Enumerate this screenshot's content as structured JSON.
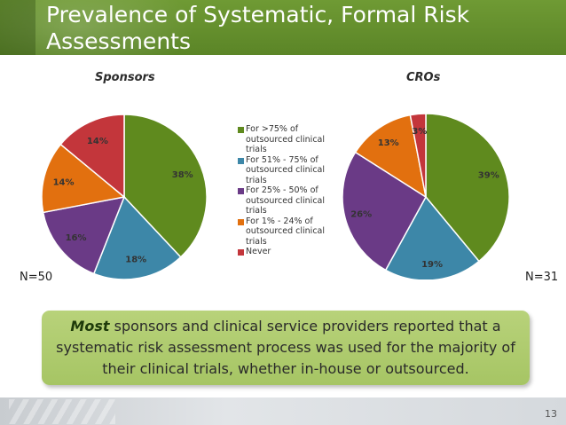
{
  "slide": {
    "title": "Prevalence of Systematic, Formal Risk Assessments",
    "page_number": "13"
  },
  "callout": {
    "emphasis": "Most",
    "text": " sponsors and clinical service providers reported that a systematic risk assessment process was used for the majority of their clinical trials, whether in-house or outsourced."
  },
  "colors": {
    "header_green": "#5b8527",
    "slice_1": "#5f8a1e",
    "slice_2": "#3d87a8",
    "slice_3": "#6a3a86",
    "slice_4": "#e2700f",
    "slice_5": "#c3363b"
  },
  "chart_data": [
    {
      "type": "pie",
      "title": "Sponsors",
      "note": "N=50",
      "categories": [
        "For >75% of outsourced clinical trials",
        "For 51% - 75% of outsourced clinical trials",
        "For 25% - 50% of outsourced clinical trials",
        "For 1% - 24% of outsourced clinical trials",
        "Never"
      ],
      "values": [
        38,
        18,
        16,
        14,
        14
      ],
      "labels": [
        "38%",
        "18%",
        "16%",
        "14%",
        "14%"
      ],
      "legend": "right"
    },
    {
      "type": "pie",
      "title": "CROs",
      "note": "N=31",
      "categories": [
        "For >75% of outsourced clinical trials",
        "For 51% - 75% of outsourced clinical trials",
        "For 25% - 50% of outsourced clinical trials",
        "For 1% - 24% of outsourced clinical trials",
        "Never"
      ],
      "values": [
        39,
        19,
        26,
        13,
        3
      ],
      "labels": [
        "39%",
        "19%",
        "26%",
        "13%",
        "3%"
      ],
      "legend": "left"
    }
  ],
  "legend": [
    "For >75% of outsourced clinical trials",
    "For 51% - 75% of outsourced clinical trials",
    "For 25% - 50% of outsourced clinical trials",
    "For 1% - 24% of outsourced clinical trials",
    "Never"
  ]
}
